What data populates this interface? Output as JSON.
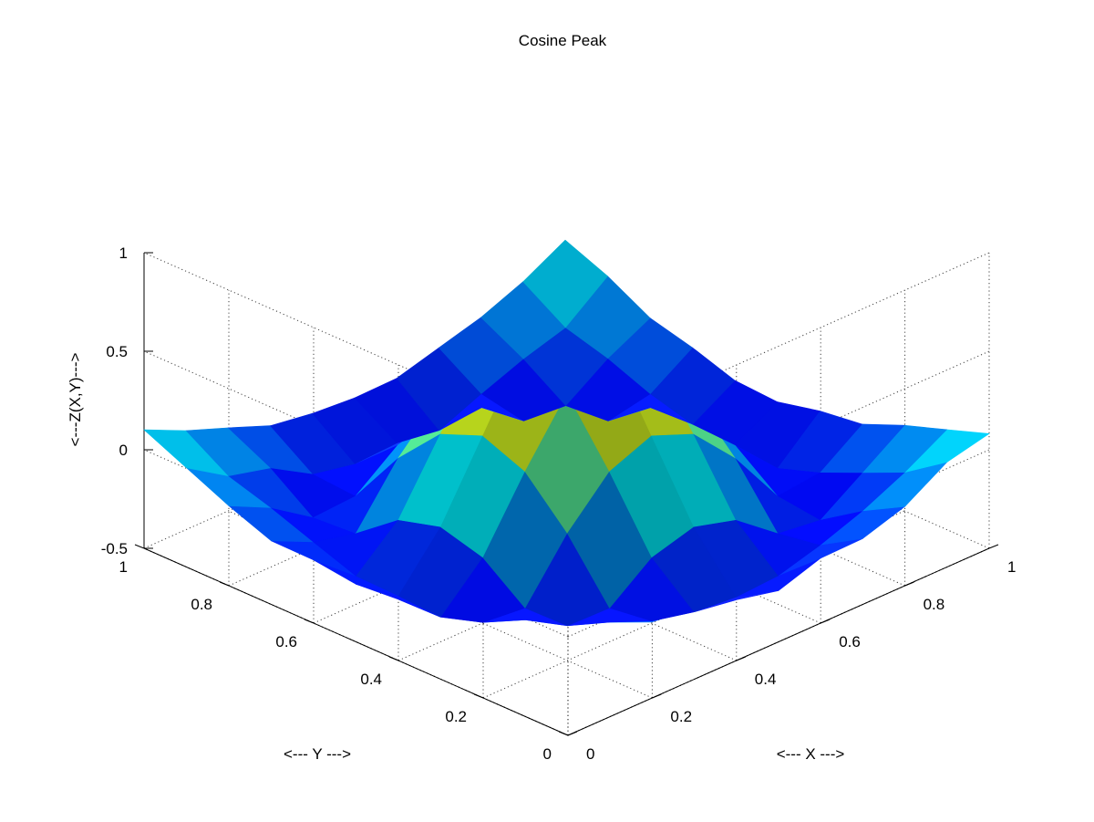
{
  "chart_data": {
    "type": "surface",
    "title": "Cosine Peak",
    "xlabel": "<--- X --->",
    "ylabel": "<--- Y --->",
    "zlabel": "<---Z(X,Y)--->",
    "xlim": [
      0,
      1
    ],
    "ylim": [
      0,
      1
    ],
    "zlim": [
      -0.5,
      1
    ],
    "x_ticks": [
      0,
      0.2,
      0.4,
      0.6,
      0.8,
      1
    ],
    "x_tick_labels": [
      "0",
      "0.2",
      "0.4",
      "0.6",
      "0.8",
      "1"
    ],
    "y_ticks": [
      0,
      0.2,
      0.4,
      0.6,
      0.8,
      1
    ],
    "y_tick_labels": [
      "0",
      "0.2",
      "0.4",
      "0.6",
      "0.8",
      "1"
    ],
    "z_ticks": [
      -0.5,
      0,
      0.5,
      1
    ],
    "z_tick_labels": [
      "-0.5",
      "0",
      "0.5",
      "1"
    ],
    "grid": true,
    "colormap": "jet",
    "grid_points": 11
  }
}
